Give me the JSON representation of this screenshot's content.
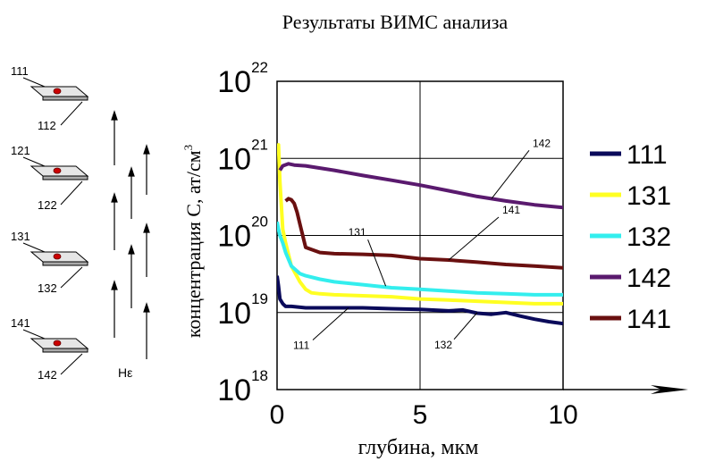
{
  "chart_data": {
    "type": "line",
    "title": "Результаты ВИМС анализа",
    "xlabel": "глубина, мкм",
    "ylabel_main": "концентрация С, ат/см",
    "ylabel_sup": "3",
    "xlim": [
      0,
      10
    ],
    "ylim": [
      1e+18,
      1e+22
    ],
    "yscale": "log",
    "grid": true,
    "legend_position": "right",
    "x_ticks": [
      "0",
      "5",
      "10"
    ],
    "y_ticks": [
      {
        "base": "10",
        "exp": "18"
      },
      {
        "base": "10",
        "exp": "19"
      },
      {
        "base": "10",
        "exp": "20"
      },
      {
        "base": "10",
        "exp": "21"
      },
      {
        "base": "10",
        "exp": "22"
      }
    ],
    "series": [
      {
        "name": "111",
        "color": "#0a0a5a",
        "x": [
          0,
          0.05,
          0.1,
          0.2,
          0.3,
          0.5,
          1,
          2,
          3,
          4,
          5,
          6,
          6.5,
          7,
          7.5,
          8,
          8.5,
          9,
          9.5,
          10
        ],
        "y": [
          3e+19,
          2.2e+19,
          1.5e+19,
          1.3e+19,
          1.2e+19,
          1.2e+19,
          1.15e+19,
          1.15e+19,
          1.15e+19,
          1.12e+19,
          1.1e+19,
          1.05e+19,
          1.08e+19,
          9.8e+18,
          9.5e+18,
          1e+19,
          9e+18,
          8.2e+18,
          7.6e+18,
          7.2e+18
        ]
      },
      {
        "name": "131",
        "color": "#ffff22",
        "x": [
          0,
          0.05,
          0.1,
          0.2,
          0.3,
          0.5,
          0.8,
          1.0,
          1.2,
          1.5,
          2,
          3,
          4,
          5,
          6,
          7,
          8,
          9,
          10
        ],
        "y": [
          1.2e+21,
          1.5e+21,
          5e+20,
          1.2e+20,
          8e+19,
          4e+19,
          2.5e+19,
          2e+19,
          1.8e+19,
          1.75e+19,
          1.7e+19,
          1.65e+19,
          1.6e+19,
          1.5e+19,
          1.45e+19,
          1.4e+19,
          1.35e+19,
          1.3e+19,
          1.3e+19
        ]
      },
      {
        "name": "132",
        "color": "#33eeee",
        "x": [
          0,
          0.05,
          0.1,
          0.2,
          0.3,
          0.5,
          0.8,
          1.0,
          1.5,
          2,
          3,
          4,
          5,
          6,
          7,
          8,
          9,
          10
        ],
        "y": [
          1.5e+20,
          1.2e+20,
          1e+20,
          8e+19,
          6e+19,
          4e+19,
          3.2e+19,
          3e+19,
          2.7e+19,
          2.5e+19,
          2.3e+19,
          2.1e+19,
          2e+19,
          1.9e+19,
          1.8e+19,
          1.75e+19,
          1.7e+19,
          1.7e+19
        ]
      },
      {
        "name": "142",
        "color": "#5a1a6e",
        "x": [
          0.1,
          0.2,
          0.4,
          0.6,
          1,
          2,
          3,
          4,
          5,
          6,
          7,
          8,
          9,
          10
        ],
        "y": [
          7e+20,
          8e+20,
          8.5e+20,
          8.2e+20,
          8e+20,
          7e+20,
          6e+20,
          5.2e+20,
          4.5e+20,
          3.8e+20,
          3.2e+20,
          2.8e+20,
          2.5e+20,
          2.3e+20
        ]
      },
      {
        "name": "141",
        "color": "#6a1010",
        "x": [
          0.3,
          0.4,
          0.5,
          0.6,
          0.7,
          0.8,
          1.0,
          1.5,
          2,
          3,
          4,
          5,
          6,
          7,
          8,
          9,
          10
        ],
        "y": [
          2.8e+20,
          3e+20,
          2.9e+20,
          2.6e+20,
          2e+20,
          1.4e+20,
          7e+19,
          6e+19,
          5.8e+19,
          5.7e+19,
          5.5e+19,
          5e+19,
          4.8e+19,
          4.5e+19,
          4.2e+19,
          4e+19,
          3.8e+19
        ]
      }
    ],
    "annotations": [
      {
        "text": "142",
        "series": "142",
        "point": [
          7.5,
          3e+20
        ]
      },
      {
        "text": "141",
        "series": "141",
        "point": [
          6.0,
          4.8e+19
        ]
      },
      {
        "text": "131",
        "series": "132",
        "point": [
          3.8,
          2.2e+19
        ]
      },
      {
        "text": "111",
        "series": "111",
        "point": [
          2.5,
          1.15e+19
        ]
      },
      {
        "text": "132",
        "series": "111",
        "point": [
          7.0,
          1e+19
        ]
      }
    ]
  },
  "sidebar": {
    "samples": [
      {
        "top": "111",
        "bottom": "112"
      },
      {
        "top": "121",
        "bottom": "122"
      },
      {
        "top": "131",
        "bottom": "132"
      },
      {
        "top": "141",
        "bottom": "142"
      }
    ],
    "field_label": "Hε"
  }
}
